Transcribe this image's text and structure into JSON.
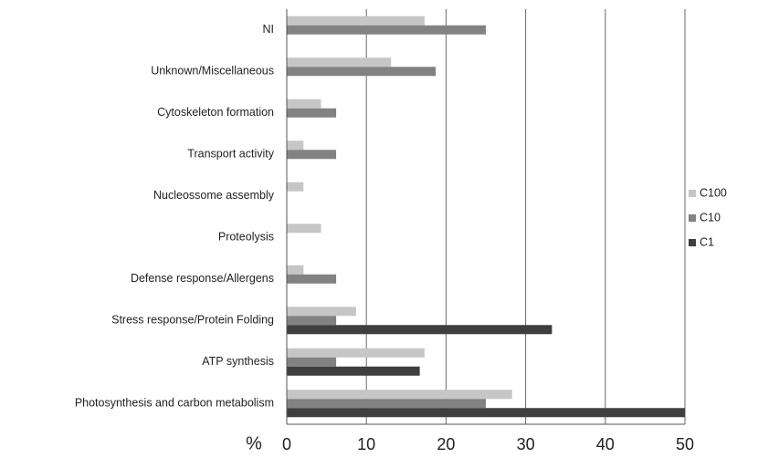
{
  "chart_data": {
    "type": "hbar",
    "categories": [
      "NI",
      "Unknown/Miscellaneous",
      "Cytoskeleton formation",
      "Transport activity",
      "Nucleossome assembly",
      "Proteolysis",
      "Defense response/Allergens",
      "Stress response/Protein Folding",
      "ATP synthesis",
      "Photosynthesis and carbon metabolism"
    ],
    "series": [
      {
        "name": "C100",
        "color": "#c6c6c6",
        "values": [
          17.3,
          13.1,
          4.3,
          2.1,
          2.1,
          4.3,
          2.1,
          8.7,
          17.3,
          28.3
        ]
      },
      {
        "name": "C10",
        "color": "#828282",
        "values": [
          25,
          18.7,
          6.2,
          6.2,
          0,
          0,
          6.2,
          6.2,
          6.2,
          25
        ]
      },
      {
        "name": "C1",
        "color": "#3f3f3f",
        "values": [
          0,
          0,
          0,
          0,
          0,
          0,
          0,
          33.3,
          16.7,
          50
        ]
      }
    ],
    "x_label": "%",
    "xlim": [
      0,
      50
    ],
    "xticks": [
      0,
      10,
      20,
      30,
      40,
      50
    ],
    "grid": true,
    "legend": "right"
  }
}
